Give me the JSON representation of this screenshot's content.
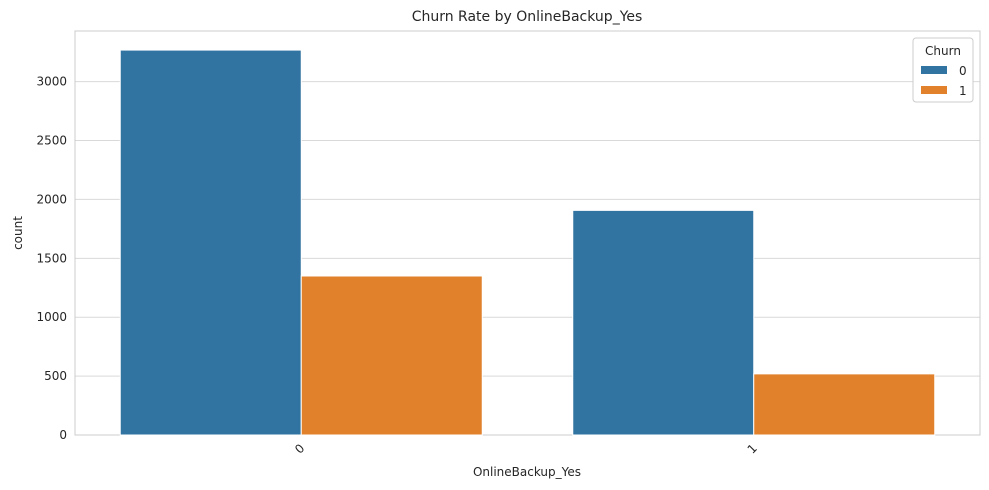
{
  "chart_data": {
    "type": "bar",
    "title": "Churn Rate by OnlineBackup_Yes",
    "xlabel": "OnlineBackup_Yes",
    "ylabel": "count",
    "categories": [
      "0",
      "1"
    ],
    "series": [
      {
        "name": "0",
        "color": "#3274a1",
        "values": [
          3268,
          1907
        ]
      },
      {
        "name": "1",
        "color": "#e1812c",
        "values": [
          1350,
          519
        ]
      }
    ],
    "ylim": [
      0,
      3430
    ],
    "yticks": [
      0,
      500,
      1000,
      1500,
      2000,
      2500,
      3000
    ],
    "grid": true,
    "legend": {
      "title": "Churn",
      "placement": "top-right"
    }
  }
}
